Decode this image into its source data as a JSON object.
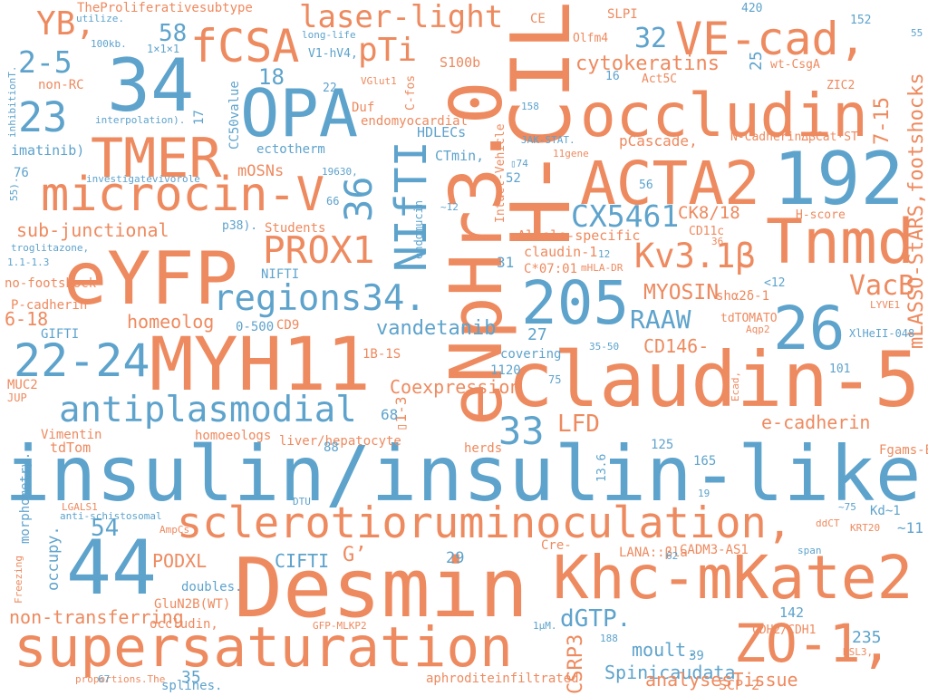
{
  "words": [
    {
      "text": "insulin/insulin-like",
      "color": "#5ea3cc"
    },
    {
      "text": "eNpHr3.0",
      "color": "#ee8a5f"
    },
    {
      "text": "H-CIL",
      "color": "#ee8a5f"
    },
    {
      "text": "claudin-5",
      "color": "#ee8a5f"
    },
    {
      "text": "Desmin",
      "color": "#ee8a5f"
    },
    {
      "text": "MYH11",
      "color": "#ee8a5f"
    },
    {
      "text": "eYFP",
      "color": "#ee8a5f"
    },
    {
      "text": "supersaturation",
      "color": "#ee8a5f"
    },
    {
      "text": "Khc-mKate2",
      "color": "#ee8a5f"
    },
    {
      "text": "sclerotioruminoculation,",
      "color": "#ee8a5f"
    },
    {
      "text": "34",
      "color": "#5ea3cc"
    },
    {
      "text": "44",
      "color": "#5ea3cc"
    },
    {
      "text": "192",
      "color": "#5ea3cc"
    },
    {
      "text": "205",
      "color": "#5ea3cc"
    },
    {
      "text": "26",
      "color": "#5ea3cc"
    },
    {
      "text": "33",
      "color": "#5ea3cc"
    },
    {
      "text": "ACTA2",
      "color": "#ee8a5f"
    },
    {
      "text": "occludin",
      "color": "#ee8a5f"
    },
    {
      "text": "VE-cad,",
      "color": "#ee8a5f"
    },
    {
      "text": "Tnmd",
      "color": "#ee8a5f"
    },
    {
      "text": "TMER",
      "color": "#ee8a5f"
    },
    {
      "text": "OPA",
      "color": "#5ea3cc"
    },
    {
      "text": "fCSA",
      "color": "#ee8a5f"
    },
    {
      "text": "microcin-V",
      "color": "#ee8a5f"
    },
    {
      "text": "22-24",
      "color": "#5ea3cc"
    },
    {
      "text": "antiplasmodial",
      "color": "#5ea3cc"
    },
    {
      "text": "ZO-1,",
      "color": "#ee8a5f"
    },
    {
      "text": "regions34.",
      "color": "#5ea3cc"
    },
    {
      "text": "PROX1",
      "color": "#ee8a5f"
    },
    {
      "text": "NIfTI",
      "color": "#5ea3cc"
    },
    {
      "text": "36",
      "color": "#5ea3cc"
    },
    {
      "text": "laser-light",
      "color": "#ee8a5f"
    },
    {
      "text": "pTi",
      "color": "#ee8a5f"
    },
    {
      "text": "58",
      "color": "#5ea3cc"
    },
    {
      "text": "YB,",
      "color": "#ee8a5f"
    },
    {
      "text": "2-5",
      "color": "#5ea3cc"
    },
    {
      "text": "23",
      "color": "#5ea3cc"
    },
    {
      "text": "18",
      "color": "#5ea3cc"
    },
    {
      "text": "32",
      "color": "#5ea3cc"
    },
    {
      "text": "cytokeratins",
      "color": "#ee8a5f"
    },
    {
      "text": "25",
      "color": "#5ea3cc"
    },
    {
      "text": "CX5461",
      "color": "#5ea3cc"
    },
    {
      "text": "Kv3.1β",
      "color": "#ee8a5f"
    },
    {
      "text": "CK8/18",
      "color": "#ee8a5f"
    },
    {
      "text": "VacB",
      "color": "#ee8a5f"
    },
    {
      "text": "RAAW",
      "color": "#5ea3cc"
    },
    {
      "text": "MYOSIN",
      "color": "#ee8a5f"
    },
    {
      "text": "mLASSO-StARS,footshocks",
      "color": "#ee8a5f"
    },
    {
      "text": "7-15",
      "color": "#ee8a5f"
    },
    {
      "text": "TheProliferativesubtype",
      "color": "#ee8a5f"
    },
    {
      "text": "utilize.",
      "color": "#5ea3cc"
    },
    {
      "text": "100kb.",
      "color": "#5ea3cc"
    },
    {
      "text": "1×1×1",
      "color": "#5ea3cc"
    },
    {
      "text": "long-life",
      "color": "#5ea3cc"
    },
    {
      "text": "V1-hV4,",
      "color": "#5ea3cc"
    },
    {
      "text": "CE",
      "color": "#ee8a5f"
    },
    {
      "text": "SLPI",
      "color": "#ee8a5f"
    },
    {
      "text": "Olfm4",
      "color": "#ee8a5f"
    },
    {
      "text": "420",
      "color": "#5ea3cc"
    },
    {
      "text": "152",
      "color": "#5ea3cc"
    },
    {
      "text": "55",
      "color": "#5ea3cc"
    },
    {
      "text": "wt-CsgA",
      "color": "#ee8a5f"
    },
    {
      "text": "16",
      "color": "#5ea3cc"
    },
    {
      "text": "Act5C",
      "color": "#ee8a5f"
    },
    {
      "text": "ZIC2",
      "color": "#ee8a5f"
    },
    {
      "text": "inhibitionT.",
      "color": "#5ea3cc"
    },
    {
      "text": "non-RC",
      "color": "#ee8a5f"
    },
    {
      "text": "interpolation).",
      "color": "#5ea3cc"
    },
    {
      "text": "17",
      "color": "#5ea3cc"
    },
    {
      "text": "CC50value",
      "color": "#5ea3cc"
    },
    {
      "text": "22",
      "color": "#5ea3cc"
    },
    {
      "text": "S100b",
      "color": "#ee8a5f"
    },
    {
      "text": "VGlut1",
      "color": "#ee8a5f"
    },
    {
      "text": "Duf",
      "color": "#ee8a5f"
    },
    {
      "text": "C-fos",
      "color": "#ee8a5f"
    },
    {
      "text": "endomyocardial",
      "color": "#ee8a5f"
    },
    {
      "text": "HDLECs",
      "color": "#5ea3cc"
    },
    {
      "text": "158",
      "color": "#5ea3cc"
    },
    {
      "text": "pCascade,",
      "color": "#ee8a5f"
    },
    {
      "text": "N-CadherinΔβCat·ST",
      "color": "#ee8a5f"
    },
    {
      "text": "imatinib)",
      "color": "#5ea3cc"
    },
    {
      "text": "ectotherm",
      "color": "#5ea3cc"
    },
    {
      "text": "JAK-STAT.",
      "color": "#5ea3cc"
    },
    {
      "text": "11gene",
      "color": "#ee8a5f"
    },
    {
      "text": "CTmin,",
      "color": "#5ea3cc"
    },
    {
      "text": "mOSNs",
      "color": "#ee8a5f"
    },
    {
      "text": "76",
      "color": "#5ea3cc"
    },
    {
      "text": "investigatevivorole",
      "color": "#5ea3cc"
    },
    {
      "text": "19630,",
      "color": "#5ea3cc"
    },
    {
      "text": "Intact-Vehicle",
      "color": "#ee8a5f"
    },
    {
      "text": "▯74",
      "color": "#5ea3cc"
    },
    {
      "text": "52",
      "color": "#5ea3cc"
    },
    {
      "text": "56",
      "color": "#5ea3cc"
    },
    {
      "text": "55).",
      "color": "#5ea3cc"
    },
    {
      "text": "66",
      "color": "#5ea3cc"
    },
    {
      "text": "~12",
      "color": "#5ea3cc"
    },
    {
      "text": "endomucin",
      "color": "#5ea3cc"
    },
    {
      "text": "sub-junctional",
      "color": "#ee8a5f"
    },
    {
      "text": "p38).",
      "color": "#5ea3cc"
    },
    {
      "text": "Students",
      "color": "#ee8a5f"
    },
    {
      "text": "H-score",
      "color": "#ee8a5f"
    },
    {
      "text": "CD11c",
      "color": "#ee8a5f"
    },
    {
      "text": "36.",
      "color": "#ee8a5f"
    },
    {
      "text": "Allele-specific",
      "color": "#ee8a5f"
    },
    {
      "text": "claudin-1",
      "color": "#ee8a5f"
    },
    {
      "text": "12",
      "color": "#5ea3cc"
    },
    {
      "text": "troglitazone,",
      "color": "#5ea3cc"
    },
    {
      "text": "1.1-1.3",
      "color": "#5ea3cc"
    },
    {
      "text": "31",
      "color": "#5ea3cc"
    },
    {
      "text": "C*07:01",
      "color": "#ee8a5f"
    },
    {
      "text": "mHLA-DR",
      "color": "#ee8a5f"
    },
    {
      "text": "NIFTI",
      "color": "#5ea3cc"
    },
    {
      "text": "no-footshock",
      "color": "#ee8a5f"
    },
    {
      "text": "<12",
      "color": "#5ea3cc"
    },
    {
      "text": "shα2δ-1",
      "color": "#ee8a5f"
    },
    {
      "text": "P-cadherin",
      "color": "#ee8a5f"
    },
    {
      "text": "6-18",
      "color": "#ee8a5f"
    },
    {
      "text": "homeolog",
      "color": "#ee8a5f"
    },
    {
      "text": "0-500",
      "color": "#5ea3cc"
    },
    {
      "text": "CD9",
      "color": "#ee8a5f"
    },
    {
      "text": "vandetanib",
      "color": "#5ea3cc"
    },
    {
      "text": "27",
      "color": "#5ea3cc"
    },
    {
      "text": "tdTOMATO",
      "color": "#ee8a5f"
    },
    {
      "text": "LYVE1",
      "color": "#ee8a5f"
    },
    {
      "text": "Aqp2",
      "color": "#ee8a5f"
    },
    {
      "text": "GIFTI",
      "color": "#5ea3cc"
    },
    {
      "text": "CD146-",
      "color": "#ee8a5f"
    },
    {
      "text": "Ecad,",
      "color": "#ee8a5f"
    },
    {
      "text": "XlHeII-048",
      "color": "#5ea3cc"
    },
    {
      "text": "35-50",
      "color": "#5ea3cc"
    },
    {
      "text": "covering",
      "color": "#5ea3cc"
    },
    {
      "text": "1B-1S",
      "color": "#ee8a5f"
    },
    {
      "text": "1120",
      "color": "#5ea3cc"
    },
    {
      "text": "75",
      "color": "#5ea3cc"
    },
    {
      "text": "101",
      "color": "#5ea3cc"
    },
    {
      "text": "MUC2",
      "color": "#ee8a5f"
    },
    {
      "text": "Coexpression",
      "color": "#ee8a5f"
    },
    {
      "text": "JUP",
      "color": "#ee8a5f"
    },
    {
      "text": "▯1-3",
      "color": "#ee8a5f"
    },
    {
      "text": "68",
      "color": "#5ea3cc"
    },
    {
      "text": "LFD",
      "color": "#ee8a5f"
    },
    {
      "text": "e-cadherin",
      "color": "#ee8a5f"
    },
    {
      "text": "homoeologs",
      "color": "#ee8a5f"
    },
    {
      "text": "Vimentin",
      "color": "#ee8a5f"
    },
    {
      "text": "tdTom",
      "color": "#ee8a5f"
    },
    {
      "text": "liver/hepatocyte",
      "color": "#ee8a5f"
    },
    {
      "text": "88",
      "color": "#5ea3cc"
    },
    {
      "text": "125",
      "color": "#5ea3cc"
    },
    {
      "text": "Fgams-EGFP",
      "color": "#ee8a5f"
    },
    {
      "text": "herds",
      "color": "#ee8a5f"
    },
    {
      "text": "165",
      "color": "#5ea3cc"
    },
    {
      "text": "13.6",
      "color": "#5ea3cc"
    },
    {
      "text": "DTU",
      "color": "#5ea3cc"
    },
    {
      "text": "19",
      "color": "#5ea3cc"
    },
    {
      "text": "occupy.",
      "color": "#5ea3cc"
    },
    {
      "text": "LGALS1",
      "color": "#ee8a5f"
    },
    {
      "text": "anti-schistosomal",
      "color": "#5ea3cc"
    },
    {
      "text": "~75",
      "color": "#5ea3cc"
    },
    {
      "text": "Kd~1",
      "color": "#5ea3cc"
    },
    {
      "text": "AmpCs",
      "color": "#ee8a5f"
    },
    {
      "text": "54",
      "color": "#5ea3cc"
    },
    {
      "text": "ddCT",
      "color": "#ee8a5f"
    },
    {
      "text": "KRT20",
      "color": "#ee8a5f"
    },
    {
      "text": "~11",
      "color": "#5ea3cc"
    },
    {
      "text": "G’",
      "color": "#ee8a5f"
    },
    {
      "text": "Cre-",
      "color": "#ee8a5f"
    },
    {
      "text": "CADM3-AS1",
      "color": "#ee8a5f"
    },
    {
      "text": "LANA::βla",
      "color": "#ee8a5f"
    },
    {
      "text": "62",
      "color": "#5ea3cc"
    },
    {
      "text": "span",
      "color": "#5ea3cc"
    },
    {
      "text": "morphometry.",
      "color": "#5ea3cc"
    },
    {
      "text": "PODXL",
      "color": "#ee8a5f"
    },
    {
      "text": "CIFTI",
      "color": "#5ea3cc"
    },
    {
      "text": "29",
      "color": "#5ea3cc"
    },
    {
      "text": "Freezing",
      "color": "#ee8a5f"
    },
    {
      "text": "doubles.",
      "color": "#5ea3cc"
    },
    {
      "text": "dGTP.",
      "color": "#5ea3cc"
    },
    {
      "text": "GluN2B(WT)",
      "color": "#ee8a5f"
    },
    {
      "text": "142",
      "color": "#5ea3cc"
    },
    {
      "text": "non-transferring",
      "color": "#ee8a5f"
    },
    {
      "text": "occludin,",
      "color": "#ee8a5f"
    },
    {
      "text": "CDH2/CDH1",
      "color": "#ee8a5f"
    },
    {
      "text": "GFP-MLKP2",
      "color": "#ee8a5f"
    },
    {
      "text": "235",
      "color": "#5ea3cc"
    },
    {
      "text": "CSRP3",
      "color": "#ee8a5f"
    },
    {
      "text": "1μM.",
      "color": "#5ea3cc"
    },
    {
      "text": "188",
      "color": "#5ea3cc"
    },
    {
      "text": "moult.",
      "color": "#5ea3cc"
    },
    {
      "text": "39",
      "color": "#5ea3cc"
    },
    {
      "text": "RSL3,",
      "color": "#ee8a5f"
    },
    {
      "text": "Spinicaudata",
      "color": "#5ea3cc"
    },
    {
      "text": "35",
      "color": "#5ea3cc"
    },
    {
      "text": "aphroditeinfiltrated",
      "color": "#ee8a5f"
    },
    {
      "text": "analysesTissue",
      "color": "#ee8a5f"
    },
    {
      "text": "SCP-2",
      "color": "#ee8a5f"
    },
    {
      "text": "proportions.The",
      "color": "#ee8a5f"
    },
    {
      "text": "67",
      "color": "#5ea3cc"
    },
    {
      "text": "splines.",
      "color": "#5ea3cc"
    },
    {
      "text": "38",
      "color": "#5ea3cc"
    }
  ]
}
